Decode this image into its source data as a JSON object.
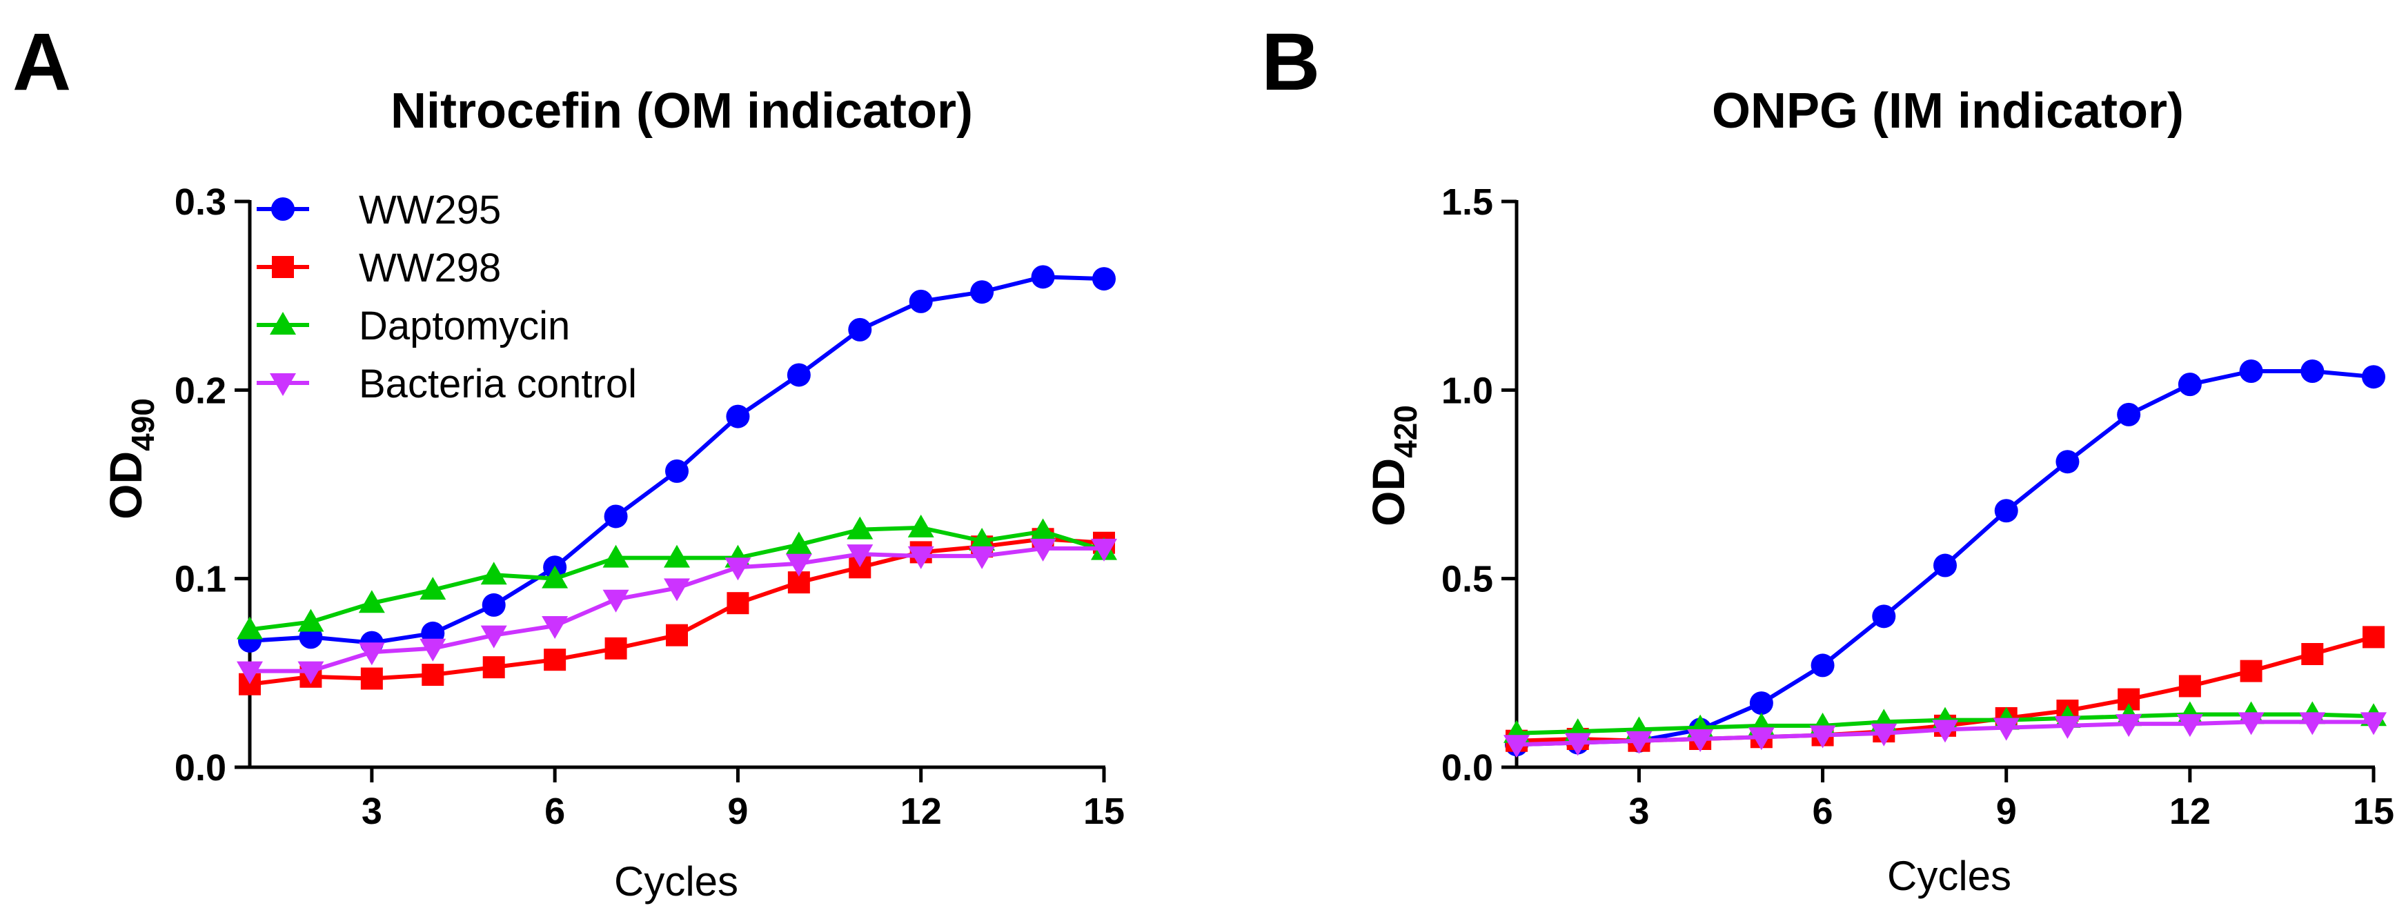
{
  "chart_data": [
    {
      "panel": "A",
      "type": "line",
      "title": "Nitrocefin (OM indicator)",
      "xlabel": "Cycles",
      "ylabel_main": "OD",
      "ylabel_sub": "490",
      "xlim": [
        1,
        15
      ],
      "ylim": [
        0,
        0.3
      ],
      "xticks": [
        3,
        6,
        9,
        12,
        15
      ],
      "xtick_labels": [
        "3",
        "6",
        "9",
        "12",
        "15"
      ],
      "yticks": [
        0,
        0.1,
        0.2,
        0.3
      ],
      "ytick_labels": [
        "0.0",
        "0.1",
        "0.2",
        "0.3"
      ],
      "grid": false,
      "legend": "top-left",
      "x": [
        1,
        2,
        3,
        4,
        5,
        6,
        7,
        8,
        9,
        10,
        11,
        12,
        13,
        14,
        15
      ],
      "series": [
        {
          "name": "WW295",
          "color": "#0000ff",
          "marker": "circle",
          "values": [
            0.067,
            0.069,
            0.066,
            0.071,
            0.086,
            0.106,
            0.133,
            0.157,
            0.186,
            0.208,
            0.232,
            0.247,
            0.252,
            0.26,
            0.259
          ]
        },
        {
          "name": "WW298",
          "color": "#ff0000",
          "marker": "square",
          "values": [
            0.044,
            0.048,
            0.047,
            0.049,
            0.053,
            0.057,
            0.063,
            0.07,
            0.087,
            0.098,
            0.106,
            0.114,
            0.117,
            0.121,
            0.119
          ]
        },
        {
          "name": "Daptomycin",
          "color": "#00cc00",
          "marker": "triangle-up",
          "values": [
            0.073,
            0.077,
            0.087,
            0.094,
            0.102,
            0.1,
            0.111,
            0.111,
            0.111,
            0.118,
            0.126,
            0.127,
            0.12,
            0.125,
            0.115
          ]
        },
        {
          "name": "Bacteria control",
          "color": "#cc33ff",
          "marker": "triangle-down",
          "values": [
            0.051,
            0.051,
            0.061,
            0.063,
            0.07,
            0.075,
            0.089,
            0.095,
            0.106,
            0.108,
            0.113,
            0.112,
            0.112,
            0.116,
            0.116
          ]
        }
      ]
    },
    {
      "panel": "B",
      "type": "line",
      "title": "ONPG (IM indicator)",
      "xlabel": "Cycles",
      "ylabel_main": "OD",
      "ylabel_sub": "420",
      "xlim": [
        1,
        15
      ],
      "ylim": [
        0,
        1.5
      ],
      "xticks": [
        3,
        6,
        9,
        12,
        15
      ],
      "xtick_labels": [
        "3",
        "6",
        "9",
        "12",
        "15"
      ],
      "yticks": [
        0,
        0.5,
        1.0,
        1.5
      ],
      "ytick_labels": [
        "0.0",
        "0.5",
        "1.0",
        "1.5"
      ],
      "grid": false,
      "legend": "none",
      "x": [
        1,
        2,
        3,
        4,
        5,
        6,
        7,
        8,
        9,
        10,
        11,
        12,
        13,
        14,
        15
      ],
      "series": [
        {
          "name": "WW295",
          "color": "#0000ff",
          "marker": "circle",
          "values": [
            0.06,
            0.065,
            0.07,
            0.1,
            0.17,
            0.27,
            0.4,
            0.535,
            0.68,
            0.81,
            0.935,
            1.015,
            1.05,
            1.05,
            1.035
          ]
        },
        {
          "name": "WW298",
          "color": "#ff0000",
          "marker": "square",
          "values": [
            0.07,
            0.075,
            0.07,
            0.075,
            0.08,
            0.085,
            0.095,
            0.11,
            0.13,
            0.15,
            0.18,
            0.215,
            0.255,
            0.3,
            0.345
          ]
        },
        {
          "name": "Daptomycin",
          "color": "#00cc00",
          "marker": "triangle-up",
          "values": [
            0.09,
            0.095,
            0.1,
            0.105,
            0.11,
            0.11,
            0.12,
            0.125,
            0.125,
            0.13,
            0.135,
            0.14,
            0.14,
            0.14,
            0.135
          ]
        },
        {
          "name": "Bacteria control",
          "color": "#cc33ff",
          "marker": "triangle-down",
          "values": [
            0.06,
            0.065,
            0.07,
            0.075,
            0.08,
            0.085,
            0.09,
            0.1,
            0.105,
            0.11,
            0.115,
            0.115,
            0.12,
            0.12,
            0.12
          ]
        }
      ]
    }
  ],
  "panel_letters": [
    "A",
    "B"
  ]
}
